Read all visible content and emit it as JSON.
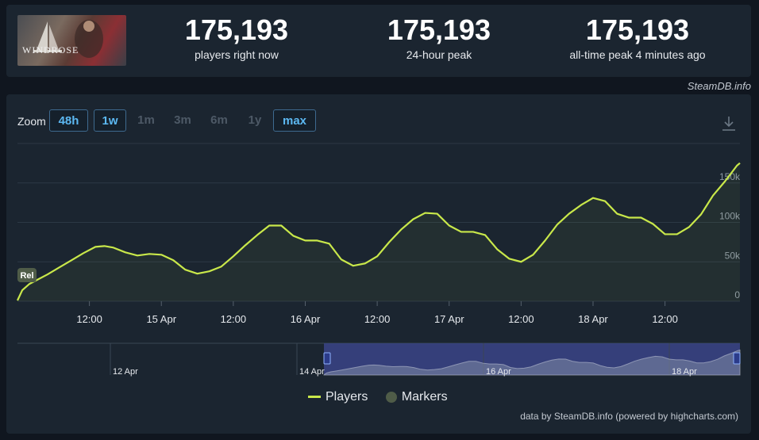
{
  "header": {
    "game_logo_text": "WINDROSE",
    "stats": [
      {
        "value": "175,193",
        "label": "players right now"
      },
      {
        "value": "175,193",
        "label": "24-hour peak"
      },
      {
        "value": "175,193",
        "label": "all-time peak 4 minutes ago"
      }
    ]
  },
  "credit_top": "SteamDB.info",
  "zoom": {
    "label": "Zoom",
    "buttons": [
      {
        "label": "48h",
        "active": true
      },
      {
        "label": "1w",
        "active": true
      },
      {
        "label": "1m",
        "active": false
      },
      {
        "label": "3m",
        "active": false
      },
      {
        "label": "6m",
        "active": false
      },
      {
        "label": "1y",
        "active": false
      },
      {
        "label": "max",
        "active": true
      }
    ]
  },
  "legend": {
    "players": "Players",
    "markers": "Markers"
  },
  "credit_bottom": "data by SteamDB.info (powered by highcharts.com)",
  "icons": {
    "download": "download-icon"
  },
  "colors": {
    "series": "#c9e84a",
    "marker": "#4f5c48",
    "navigator_mask": "#3a4487",
    "active_button": "#5cb8f2"
  },
  "chart_data": {
    "type": "line",
    "x_unit": "hours since 14 Apr 00:00",
    "x_ticks": [
      {
        "x": 12,
        "label": "12:00"
      },
      {
        "x": 24,
        "label": "15 Apr"
      },
      {
        "x": 36,
        "label": "12:00"
      },
      {
        "x": 48,
        "label": "16 Apr"
      },
      {
        "x": 60,
        "label": "12:00"
      },
      {
        "x": 72,
        "label": "17 Apr"
      },
      {
        "x": 84,
        "label": "12:00"
      },
      {
        "x": 96,
        "label": "18 Apr"
      },
      {
        "x": 108,
        "label": "12:00"
      }
    ],
    "y_ticks": [
      {
        "y": 0,
        "label": "0"
      },
      {
        "y": 50000,
        "label": "50k"
      },
      {
        "y": 100000,
        "label": "100k"
      },
      {
        "y": 150000,
        "label": "150k"
      }
    ],
    "ylim": [
      0,
      200000
    ],
    "xlim": [
      0,
      120.5
    ],
    "grid": true,
    "legend_position": "bottom-center",
    "series": [
      {
        "name": "Players",
        "x": [
          0,
          0.8,
          2,
          3.5,
          5,
          7,
          9,
          11,
          13,
          14.5,
          16,
          18,
          20,
          22,
          24,
          26,
          28,
          30,
          32,
          34,
          36,
          38,
          40,
          42,
          44,
          46,
          48,
          50,
          52,
          54,
          56,
          58,
          60,
          62,
          64,
          66,
          68,
          70,
          72,
          74,
          76,
          78,
          80,
          82,
          84,
          86,
          88,
          90,
          92,
          94,
          96,
          98,
          100,
          102,
          104,
          106,
          108,
          110,
          112,
          114,
          116,
          118,
          120,
          120.5
        ],
        "y": [
          1000,
          14000,
          22000,
          28000,
          34000,
          43000,
          52000,
          61000,
          69000,
          70000,
          68000,
          62000,
          58000,
          60000,
          59000,
          52000,
          40000,
          35000,
          38000,
          44000,
          57000,
          71000,
          84000,
          96000,
          96000,
          83000,
          77000,
          77000,
          73000,
          53000,
          45000,
          48000,
          57000,
          75000,
          91000,
          104000,
          112000,
          111000,
          96000,
          88000,
          88000,
          84000,
          66000,
          54000,
          50000,
          59000,
          77000,
          97000,
          111000,
          122000,
          131000,
          127000,
          111000,
          106000,
          106000,
          98000,
          85000,
          85000,
          94000,
          110000,
          134000,
          152000,
          172000,
          175193
        ]
      }
    ],
    "markers": [
      {
        "x": 0,
        "label": "Rel"
      }
    ],
    "navigator": {
      "tick_labels": [
        "12 Apr",
        "14 Apr",
        "16 Apr",
        "18 Apr"
      ]
    }
  }
}
